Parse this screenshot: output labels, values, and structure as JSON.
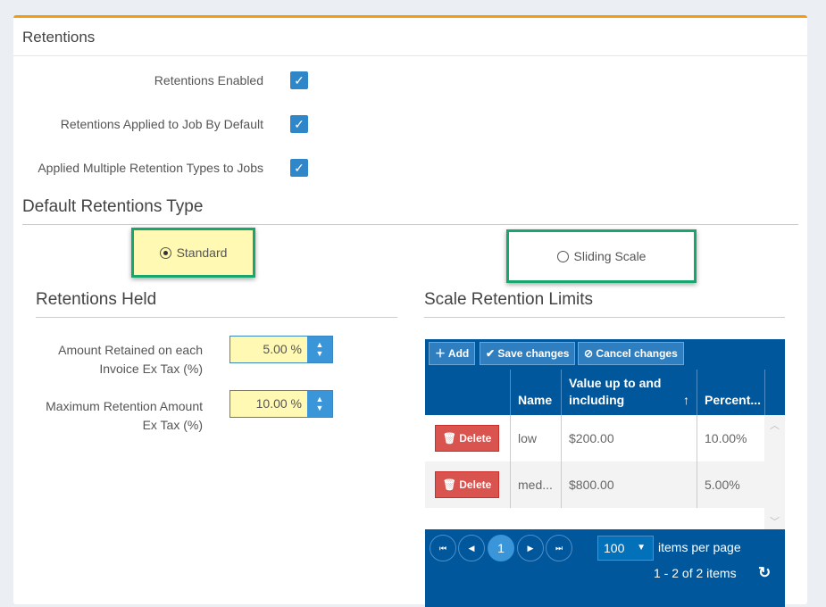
{
  "title": "Retentions",
  "checkboxes": [
    {
      "label": "Retentions Enabled",
      "checked": true
    },
    {
      "label": "Retentions Applied to Job By Default",
      "checked": true
    },
    {
      "label": "Applied Multiple Retention Types to Jobs",
      "checked": true
    }
  ],
  "default_type": {
    "heading": "Default Retentions Type",
    "options": [
      {
        "label": "Standard",
        "selected": true
      },
      {
        "label": "Sliding Scale",
        "selected": false
      }
    ]
  },
  "held": {
    "heading": "Retentions Held",
    "fields": [
      {
        "label": "Amount Retained on each Invoice Ex Tax (%)",
        "value": "5.00 %"
      },
      {
        "label": "Maximum Retention Amount Ex Tax (%)",
        "value": "10.00 %"
      }
    ]
  },
  "scale": {
    "heading": "Scale Retention Limits",
    "toolbar": {
      "add": "Add",
      "save": "Save changes",
      "cancel": "Cancel changes"
    },
    "columns": [
      "Name",
      "Value up to and including",
      "Percent..."
    ],
    "delete_label": "Delete",
    "rows": [
      {
        "name": "low",
        "value": "$200.00",
        "percent": "10.00%"
      },
      {
        "name": "med...",
        "value": "$800.00",
        "percent": "5.00%"
      }
    ],
    "pager": {
      "page": "1",
      "page_size": "100",
      "items_per_page": "items per page",
      "summary": "1 - 2 of 2 items"
    }
  },
  "colors": {
    "accent": "#f39c12",
    "grid": "#00579c",
    "checkbox": "#2f86c8",
    "highlight": "#19a56e",
    "delete": "#d9534f"
  }
}
